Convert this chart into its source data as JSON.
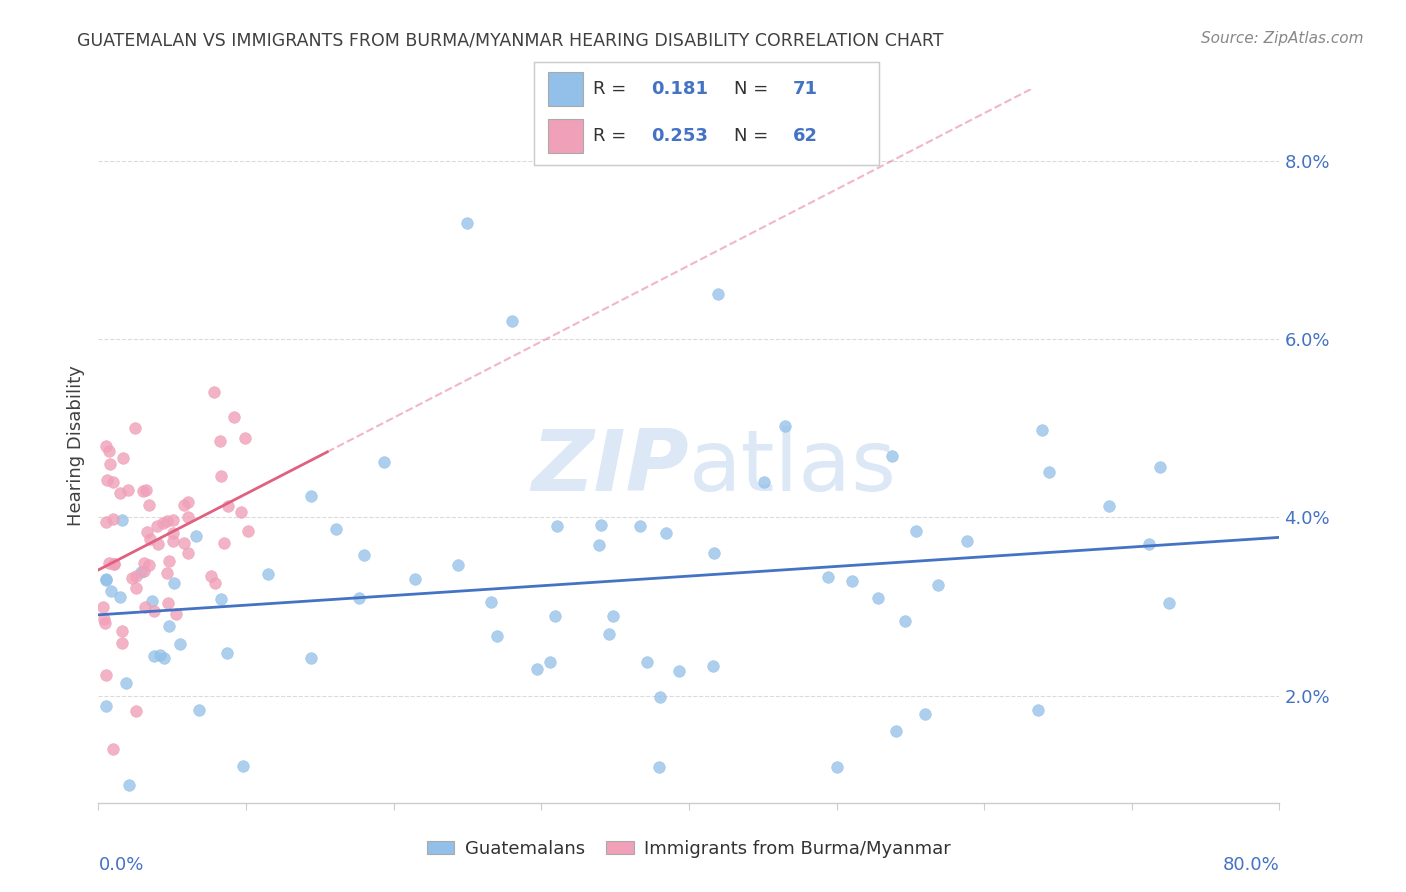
{
  "title": "GUATEMALAN VS IMMIGRANTS FROM BURMA/MYANMAR HEARING DISABILITY CORRELATION CHART",
  "source": "Source: ZipAtlas.com",
  "ylabel": "Hearing Disability",
  "ytick_vals": [
    0.02,
    0.04,
    0.06,
    0.08
  ],
  "ytick_labels": [
    "2.0%",
    "4.0%",
    "6.0%",
    "8.0%"
  ],
  "xrange": [
    0.0,
    0.8
  ],
  "yrange": [
    0.008,
    0.088
  ],
  "color_blue": "#92C0E8",
  "color_pink": "#F0A0B8",
  "line_blue": "#4472C4",
  "line_pink": "#E06080",
  "watermark_color": "#DCE8F5",
  "tick_color": "#4472C4",
  "grid_color": "#CCCCCC",
  "title_color": "#404040",
  "source_color": "#888888"
}
